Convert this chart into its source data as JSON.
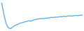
{
  "values": [
    520,
    380,
    260,
    200,
    180,
    195,
    215,
    230,
    240,
    255,
    260,
    270,
    275,
    285,
    280,
    290,
    300,
    305,
    310,
    315,
    312,
    320,
    318,
    325,
    330,
    328,
    335,
    332,
    340,
    338,
    345,
    342,
    348,
    350,
    348,
    352,
    355,
    353,
    358,
    360
  ],
  "line_color": "#5ba3d9",
  "background_color": "#ffffff",
  "linewidth": 0.9
}
